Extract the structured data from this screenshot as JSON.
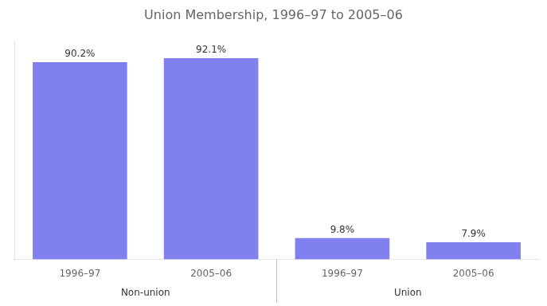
{
  "chart_data": {
    "type": "bar",
    "title": "Union Membership, 1996–97 to 2005–06",
    "categories": [
      "1996–97",
      "2005–06",
      "1996–97",
      "2005–06"
    ],
    "groups": [
      "Non-union",
      "Non-union",
      "Union",
      "Union"
    ],
    "values": [
      90.2,
      92.1,
      9.8,
      7.9
    ],
    "value_labels": [
      "90.2%",
      "92.1%",
      "9.8%",
      "7.9%"
    ],
    "data_labels": true,
    "color": "#8080ee",
    "ylim": [
      0,
      100
    ],
    "tick_labels": "x",
    "grid": false
  }
}
